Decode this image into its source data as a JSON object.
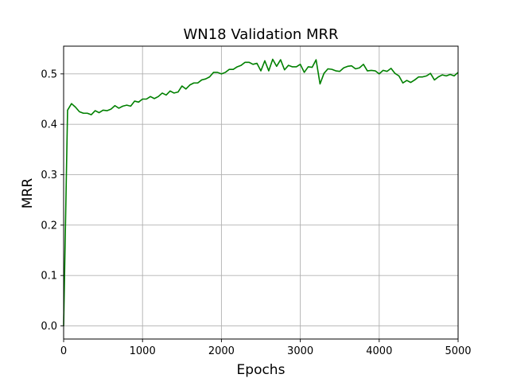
{
  "chart_data": {
    "type": "line",
    "title": "WN18 Validation MRR",
    "xlabel": "Epochs",
    "ylabel": "MRR",
    "xlim": [
      0,
      5000
    ],
    "ylim": [
      -0.026,
      0.555
    ],
    "xticks": [
      0,
      1000,
      2000,
      3000,
      4000,
      5000
    ],
    "xtick_labels": [
      "0",
      "1000",
      "2000",
      "3000",
      "4000",
      "5000"
    ],
    "yticks": [
      0.0,
      0.1,
      0.2,
      0.3,
      0.4,
      0.5
    ],
    "ytick_labels": [
      "0.0",
      "0.1",
      "0.2",
      "0.3",
      "0.4",
      "0.5"
    ],
    "grid": true,
    "legend": false,
    "series": [
      {
        "color": "#008000",
        "x": [
          0,
          50,
          100,
          150,
          200,
          250,
          300,
          350,
          400,
          450,
          500,
          550,
          600,
          650,
          700,
          750,
          800,
          850,
          900,
          950,
          1000,
          1050,
          1100,
          1150,
          1200,
          1250,
          1300,
          1350,
          1400,
          1450,
          1500,
          1550,
          1600,
          1650,
          1700,
          1750,
          1800,
          1850,
          1900,
          1950,
          2000,
          2050,
          2100,
          2150,
          2200,
          2250,
          2300,
          2350,
          2400,
          2450,
          2500,
          2550,
          2600,
          2650,
          2700,
          2750,
          2800,
          2850,
          2900,
          2950,
          3000,
          3050,
          3100,
          3150,
          3200,
          3250,
          3300,
          3350,
          3400,
          3450,
          3500,
          3550,
          3600,
          3650,
          3700,
          3750,
          3800,
          3850,
          3900,
          3950,
          4000,
          4050,
          4100,
          4150,
          4200,
          4250,
          4300,
          4350,
          4400,
          4450,
          4500,
          4550,
          4600,
          4650,
          4700,
          4750,
          4800,
          4850,
          4900,
          4950,
          5000
        ],
        "y": [
          0.0,
          0.428,
          0.441,
          0.434,
          0.425,
          0.422,
          0.422,
          0.419,
          0.427,
          0.423,
          0.428,
          0.427,
          0.43,
          0.437,
          0.432,
          0.436,
          0.438,
          0.436,
          0.446,
          0.444,
          0.45,
          0.45,
          0.455,
          0.451,
          0.455,
          0.462,
          0.458,
          0.466,
          0.462,
          0.464,
          0.476,
          0.47,
          0.478,
          0.482,
          0.482,
          0.488,
          0.49,
          0.494,
          0.503,
          0.503,
          0.5,
          0.503,
          0.509,
          0.509,
          0.514,
          0.517,
          0.523,
          0.523,
          0.519,
          0.521,
          0.506,
          0.526,
          0.506,
          0.529,
          0.515,
          0.528,
          0.508,
          0.517,
          0.514,
          0.514,
          0.519,
          0.503,
          0.514,
          0.513,
          0.528,
          0.48,
          0.501,
          0.51,
          0.509,
          0.506,
          0.505,
          0.512,
          0.515,
          0.516,
          0.51,
          0.512,
          0.519,
          0.506,
          0.507,
          0.506,
          0.5,
          0.507,
          0.505,
          0.511,
          0.501,
          0.496,
          0.482,
          0.487,
          0.483,
          0.488,
          0.494,
          0.494,
          0.496,
          0.501,
          0.488,
          0.494,
          0.498,
          0.496,
          0.499,
          0.496,
          0.503
        ]
      }
    ]
  }
}
